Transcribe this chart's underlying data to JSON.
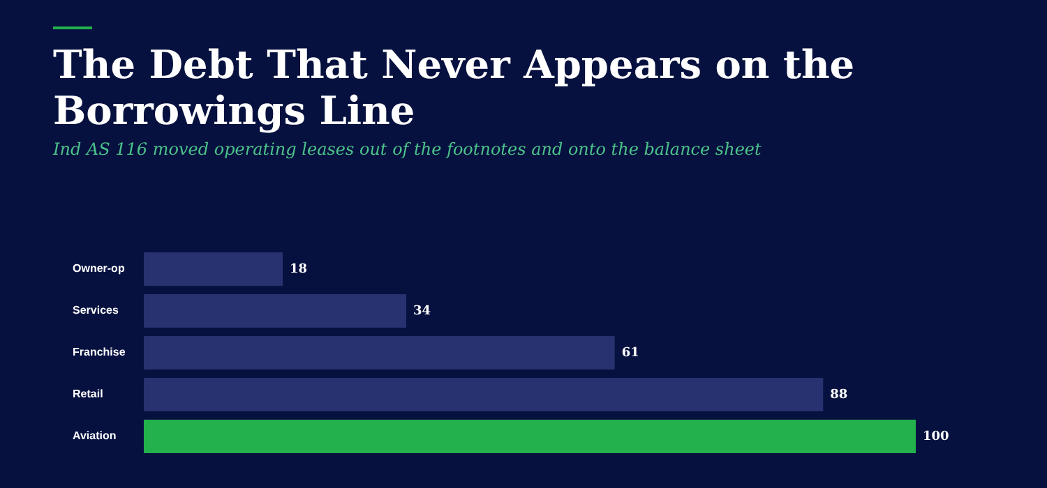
{
  "chart_data": {
    "type": "bar",
    "orientation": "horizontal",
    "title": "The Debt That Never Appears on the Borrowings Line",
    "subtitle": "Ind AS 116 moved operating leases out of the footnotes and onto the balance sheet",
    "categories": [
      "Owner-op",
      "Services",
      "Franchise",
      "Retail",
      "Aviation"
    ],
    "values": [
      18,
      34,
      61,
      88,
      100
    ],
    "colors": [
      "#283270",
      "#283270",
      "#283270",
      "#283270",
      "#22b14c"
    ],
    "data_labels": true,
    "grid": false,
    "legend": false
  }
}
